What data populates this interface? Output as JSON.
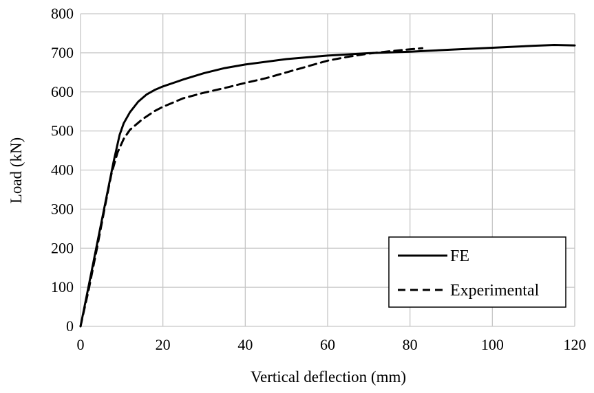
{
  "chart_data": {
    "type": "line",
    "title": "",
    "xlabel": "Vertical deflection (mm)",
    "ylabel": "Load (kN)",
    "xlim": [
      0,
      120
    ],
    "ylim": [
      0,
      800
    ],
    "xticks": [
      0,
      20,
      40,
      60,
      80,
      100,
      120
    ],
    "yticks": [
      0,
      100,
      200,
      300,
      400,
      500,
      600,
      700,
      800
    ],
    "grid": true,
    "legend_position": "bottom-right",
    "series": [
      {
        "name": "FE",
        "style": "solid",
        "color": "#000000",
        "x": [
          0,
          2,
          4,
          6,
          8,
          9.5,
          10.5,
          12,
          14,
          16,
          18,
          20,
          25,
          30,
          35,
          40,
          50,
          60,
          70,
          80,
          90,
          100,
          110,
          115,
          120
        ],
        "y": [
          0,
          105,
          210,
          315,
          420,
          490,
          520,
          548,
          575,
          593,
          605,
          614,
          632,
          648,
          661,
          670,
          684,
          693,
          699,
          703,
          708,
          713,
          718,
          720,
          719
        ]
      },
      {
        "name": "Experimental",
        "style": "dashed",
        "color": "#000000",
        "x": [
          0,
          2,
          4,
          6,
          7.5,
          9,
          10.5,
          12,
          15,
          18,
          20,
          25,
          30,
          35,
          40,
          45,
          50,
          55,
          60,
          65,
          70,
          75,
          80,
          83
        ],
        "y": [
          0,
          95,
          200,
          310,
          390,
          445,
          480,
          503,
          530,
          551,
          562,
          584,
          598,
          610,
          623,
          635,
          650,
          665,
          680,
          690,
          698,
          704,
          709,
          712
        ]
      }
    ]
  }
}
